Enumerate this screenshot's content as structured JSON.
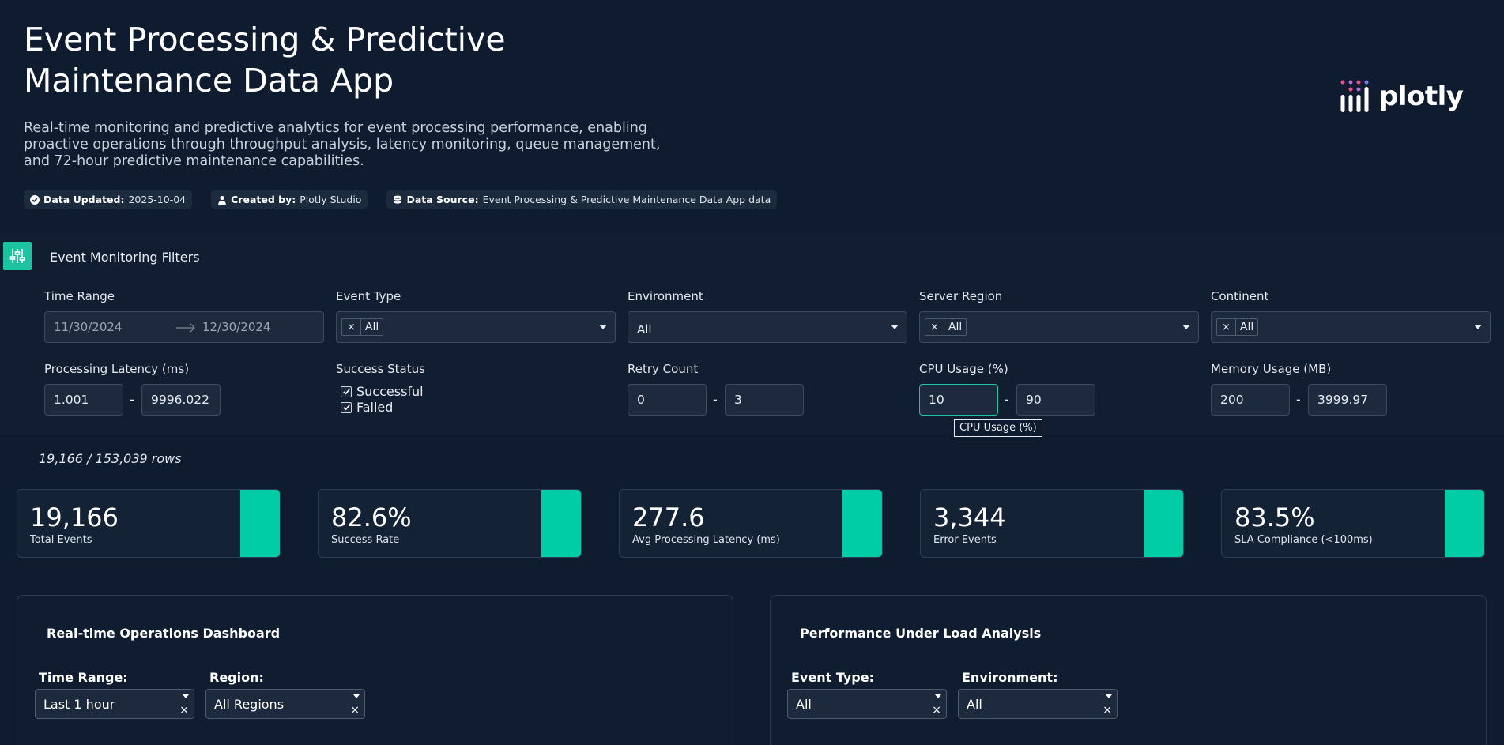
{
  "header": {
    "title": "Event Processing & Predictive Maintenance Data App",
    "description": "Real-time monitoring and predictive analytics for event processing performance, enabling proactive operations through throughput analysis, latency monitoring, queue management, and 72-hour predictive maintenance capabilities.",
    "badges": [
      {
        "label": "Data Updated:",
        "value": "2025-10-04",
        "icon": "check-circle-icon"
      },
      {
        "label": "Created by:",
        "value": "Plotly Studio",
        "icon": "user-icon"
      },
      {
        "label": "Data Source:",
        "value": "Event Processing & Predictive Maintenance Data App data",
        "icon": "database-icon"
      }
    ],
    "logo_text": "plotly"
  },
  "filters": {
    "title": "Event Monitoring Filters",
    "time_range": {
      "label": "Time Range",
      "start": "11/30/2024",
      "end": "12/30/2024"
    },
    "event_type": {
      "label": "Event Type",
      "chip": "All"
    },
    "environment": {
      "label": "Environment",
      "value": "All"
    },
    "server_region": {
      "label": "Server Region",
      "chip": "All"
    },
    "continent": {
      "label": "Continent",
      "chip": "All"
    },
    "processing_latency": {
      "label": "Processing Latency (ms)",
      "min": "1.001",
      "max": "9996.022"
    },
    "success_status": {
      "label": "Success Status",
      "options": [
        "Successful",
        "Failed"
      ]
    },
    "retry_count": {
      "label": "Retry Count",
      "min": "0",
      "max": "3"
    },
    "cpu_usage": {
      "label": "CPU Usage (%)",
      "min": "10",
      "max": "90",
      "tooltip": "CPU Usage (%)"
    },
    "memory_usage": {
      "label": "Memory Usage (MB)",
      "min": "200",
      "max": "3999.97"
    },
    "separator": "-"
  },
  "rows_count": "19,166 / 153,039 rows",
  "kpis": [
    {
      "value": "19,166",
      "label": "Total Events"
    },
    {
      "value": "82.6%",
      "label": "Success Rate"
    },
    {
      "value": "277.6",
      "label": "Avg Processing Latency (ms)"
    },
    {
      "value": "3,344",
      "label": "Error Events"
    },
    {
      "value": "83.5%",
      "label": "SLA Compliance (<100ms)"
    }
  ],
  "panels": {
    "realtime": {
      "title": "Real-time Operations Dashboard",
      "time_range_label": "Time Range:",
      "time_range_value": "Last 1 hour",
      "region_label": "Region:",
      "region_value": "All Regions"
    },
    "performance": {
      "title": "Performance Under Load Analysis",
      "event_type_label": "Event Type:",
      "event_type_value": "All",
      "environment_label": "Environment:",
      "environment_value": "All"
    }
  },
  "colors": {
    "accent": "#00cca5",
    "background": "#0f1b2e"
  }
}
